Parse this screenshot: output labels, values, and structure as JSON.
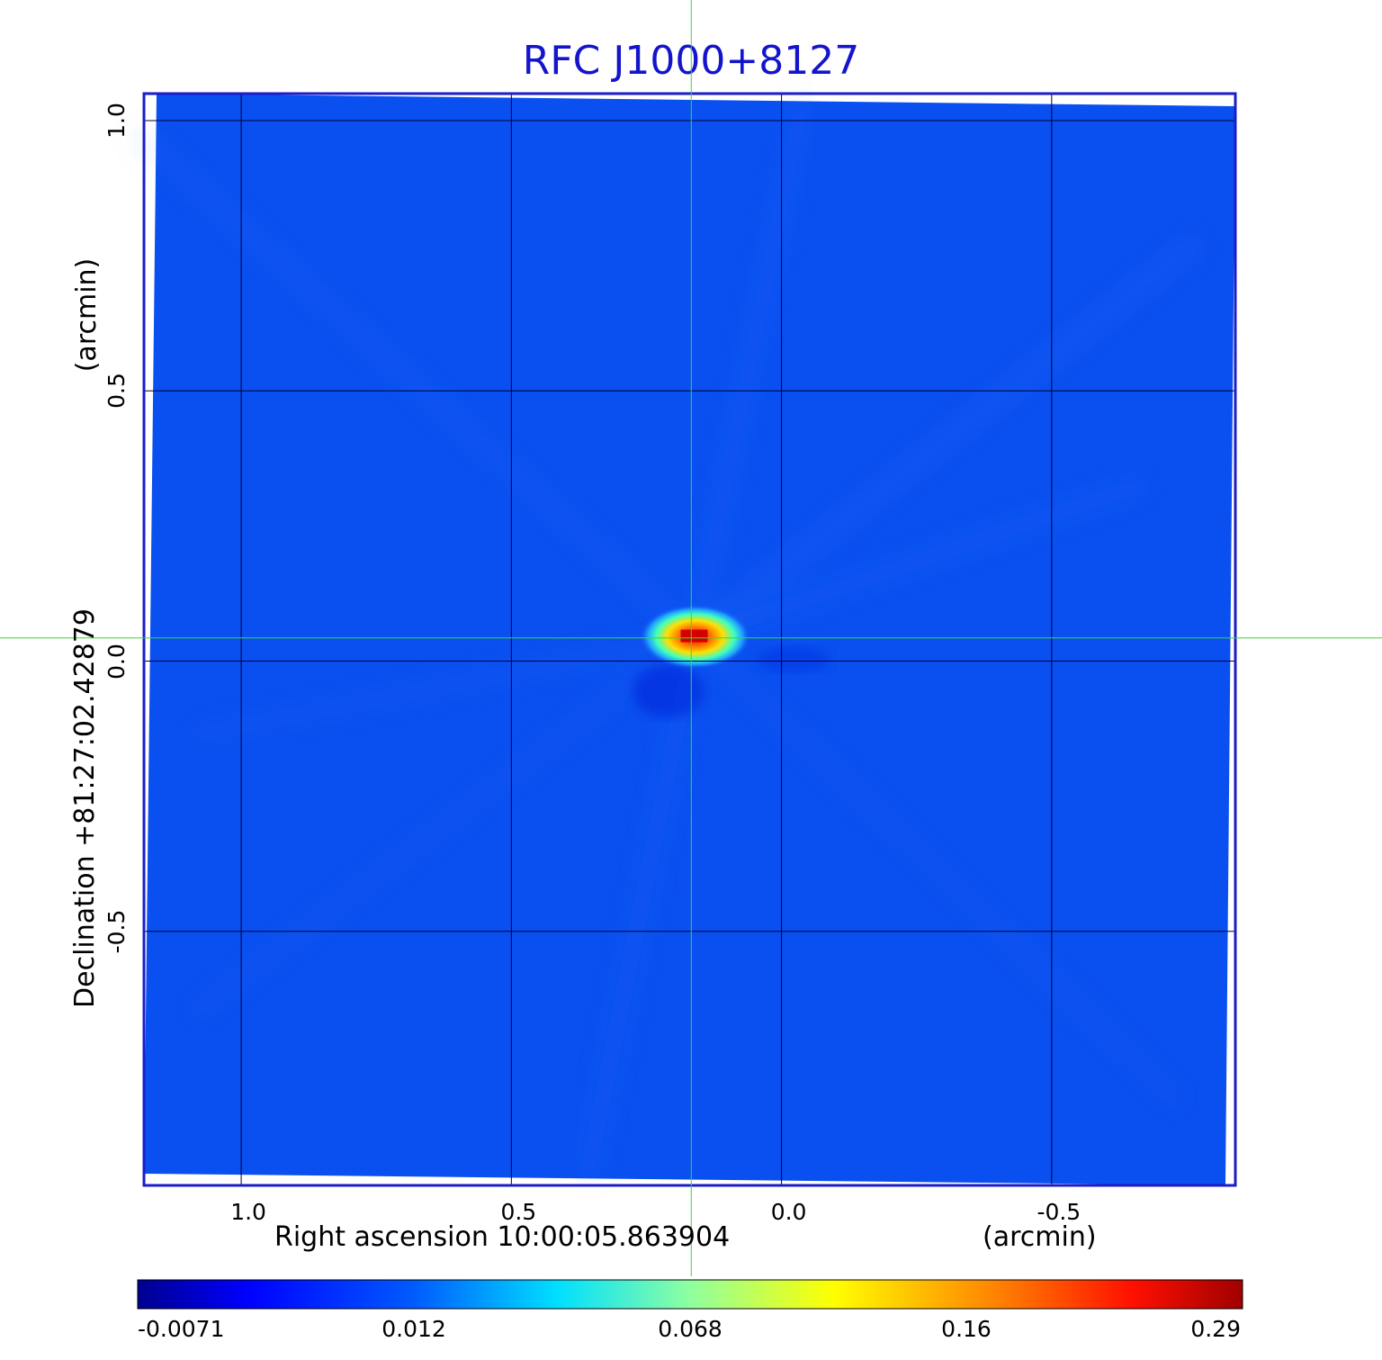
{
  "chart_data": {
    "type": "heatmap",
    "title": "RFC J1000+8127",
    "xlabel": "Right ascension  10:00:05.863904",
    "xunit": "(arcmin)",
    "ylabel": "Declination  +81:27:02.42879",
    "yunit": "(arcmin)",
    "xlim": [
      1.18,
      -0.84
    ],
    "ylim": [
      -0.97,
      1.05
    ],
    "x_ticks": [
      "1.0",
      "0.5",
      "0.0",
      "-0.5"
    ],
    "x_tick_values": [
      1.0,
      0.5,
      0.0,
      -0.5
    ],
    "y_ticks": [
      "1.0",
      "0.5",
      "0.0",
      "-0.5"
    ],
    "y_tick_values": [
      1.0,
      0.5,
      0.0,
      -0.5
    ],
    "grid": true,
    "crosshair": {
      "x": 0.167,
      "y": 0.043,
      "color": "#33dd33"
    },
    "peak": {
      "x": 0.16,
      "y": 0.045,
      "value": 0.29
    },
    "colorbar": {
      "ticks": [
        "-0.0071",
        "0.012",
        "0.068",
        "0.16",
        "0.29"
      ],
      "colormap": "jet",
      "min": -0.0071,
      "max": 0.29
    },
    "colors": {
      "background": "#0a4ff0",
      "frame": "#1c1cc8",
      "grid": "#000033"
    }
  }
}
